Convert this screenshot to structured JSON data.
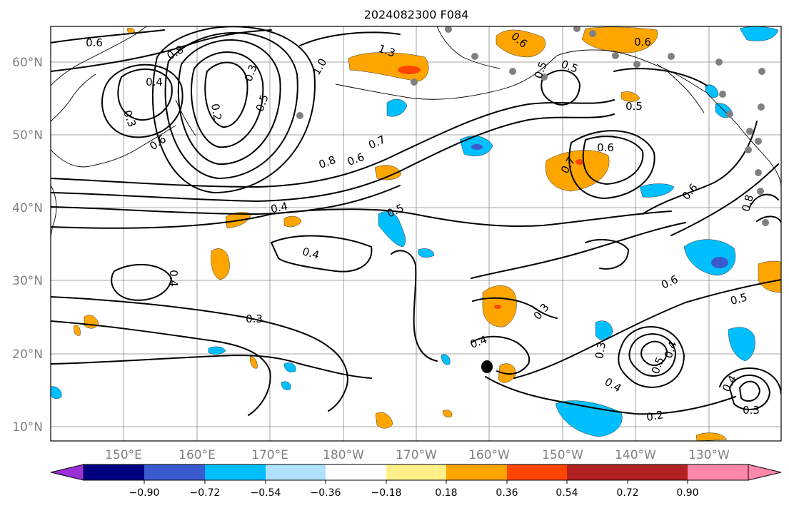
{
  "title": "2024082300 F084",
  "map": {
    "lat_labels": [
      "60°N",
      "50°N",
      "40°N",
      "30°N",
      "20°N",
      "10°N"
    ],
    "lon_labels": [
      "150°E",
      "160°E",
      "170°E",
      "180°W",
      "170°W",
      "160°W",
      "150°W",
      "140°W",
      "130°W"
    ],
    "contour_labels": [
      "0.6",
      "0.8",
      "0.4",
      "0.3",
      "0.2",
      "0.3",
      "0.5",
      "1.0",
      "1.3",
      "0.6",
      "0.7",
      "0.8",
      "0.4",
      "0.5",
      "0.4",
      "0.4",
      "0.3",
      "0.6",
      "0.5",
      "0.5",
      "0.6",
      "0.7",
      "0.6",
      "0.6",
      "0.5",
      "0.6",
      "0.8",
      "0.6",
      "0.5",
      "0.3",
      "0.4",
      "0.3",
      "0.4",
      "0.5",
      "0.4",
      "0.2",
      "0.3",
      "0.4"
    ]
  },
  "colorbar": {
    "colors": [
      "#9b30d9",
      "#000080",
      "#3a5bd0",
      "#00bfff",
      "#b0e2ff",
      "#ffffff",
      "#fff08a",
      "#ffa500",
      "#ff4500",
      "#b22222",
      "#ff88aa"
    ],
    "tick_labels": [
      "−0.90",
      "−0.72",
      "−0.54",
      "−0.36",
      "−0.18",
      "0.18",
      "0.36",
      "0.54",
      "0.72",
      "0.90"
    ]
  }
}
